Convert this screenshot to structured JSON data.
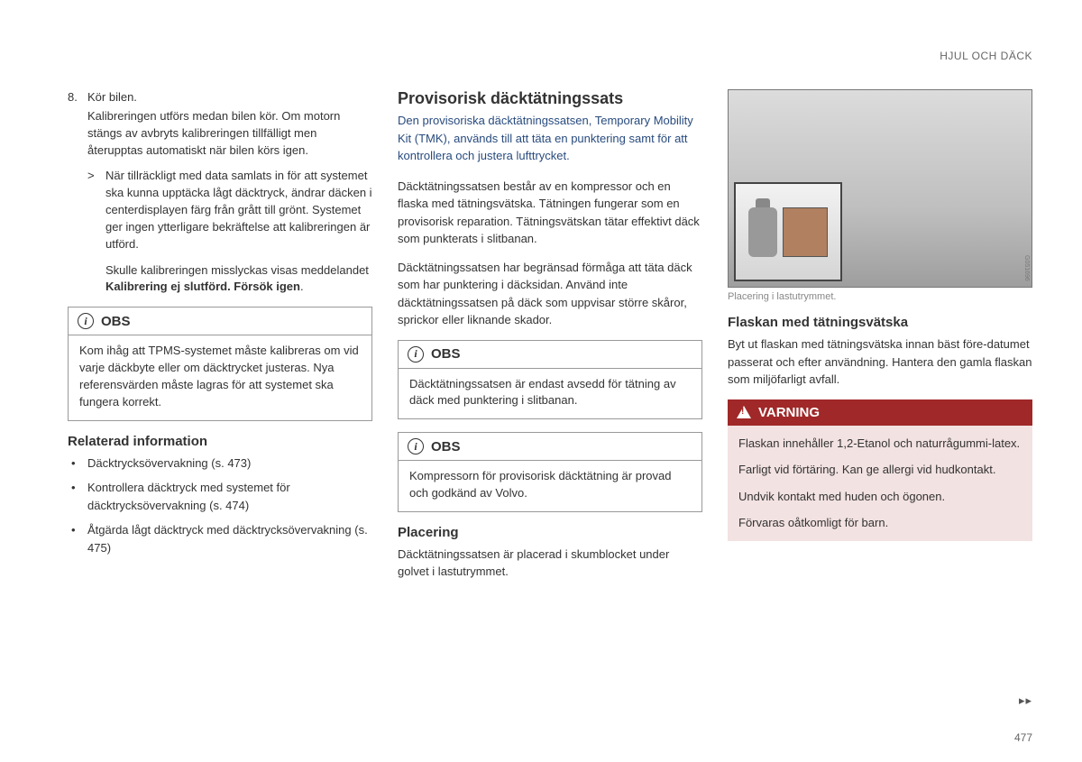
{
  "header": {
    "title": "HJUL OCH DÄCK"
  },
  "col1": {
    "step_num": "8.",
    "step_text": "Kör bilen.",
    "step_para": "Kalibreringen utförs medan bilen kör. Om motorn stängs av avbryts kalibreringen tillfälligt men återupptas automatiskt när bilen körs igen.",
    "arrow_symbol": ">",
    "arrow_p1": "När tillräckligt med data samlats in för att systemet ska kunna upptäcka lågt däcktryck, ändrar däcken i centerdisplayen färg från grått till grönt. Systemet ger ingen ytterligare bekräftelse att kalibreringen är utförd.",
    "arrow_p2_pre": "Skulle kalibreringen misslyckas visas meddelandet ",
    "arrow_p2_bold": "Kalibrering ej slutförd. Försök igen",
    "arrow_p2_post": ".",
    "obs": {
      "label": "OBS",
      "text": "Kom ihåg att TPMS-systemet måste kalibreras om vid varje däckbyte eller om däcktrycket justeras. Nya referensvärden måste lagras för att systemet ska fungera korrekt."
    },
    "related_heading": "Relaterad information",
    "related_items": [
      "Däcktrycksövervakning (s. 473)",
      "Kontrollera däcktryck med systemet för däcktrycksövervakning (s. 474)",
      "Åtgärda lågt däcktryck med däcktrycksövervakning (s. 475)"
    ]
  },
  "col2": {
    "title": "Provisorisk däcktätningssats",
    "intro": "Den provisoriska däcktätningssatsen, Temporary Mobility Kit (TMK), används till att täta en punktering samt för att kontrollera och justera lufttrycket.",
    "p1": "Däcktätningssatsen består av en kompressor och en flaska med tätningsvätska. Tätningen fungerar som en provisorisk reparation. Tätningsvätskan tätar effektivt däck som punkterats i slitbanan.",
    "p2": "Däcktätningssatsen har begränsad förmåga att täta däck som har punktering i däcksidan. Använd inte däcktätningssatsen på däck som uppvisar större skåror, sprickor eller liknande skador.",
    "obs1": {
      "label": "OBS",
      "text": "Däcktätningssatsen är endast avsedd för tätning av däck med punktering i slitbanan."
    },
    "obs2": {
      "label": "OBS",
      "text": "Kompressorn för provisorisk däcktätning är provad och godkänd av Volvo."
    },
    "placering_h": "Placering",
    "placering_p": "Däcktätningssatsen är placerad i skumblocket under golvet i lastutrymmet."
  },
  "col3": {
    "image_code": "G051696",
    "caption": "Placering i lastutrymmet.",
    "flask_h": "Flaskan med tätningsvätska",
    "flask_p": "Byt ut flaskan med tätningsvätska innan bäst före-datumet passerat och efter användning. Hantera den gamla flaskan som miljöfarligt avfall.",
    "warn": {
      "label": "VARNING",
      "p1": "Flaskan innehåller 1,2-Etanol och naturrågummi-latex.",
      "p2": "Farligt vid förtäring. Kan ge allergi vid hudkontakt.",
      "p3": "Undvik kontakt med huden och ögonen.",
      "p4": "Förvaras oåtkomligt för barn."
    }
  },
  "footer": {
    "continue": "▸▸",
    "page": "477"
  },
  "colors": {
    "intro": "#284b7e",
    "warn_header": "#a02828",
    "warn_body": "#f3e2e2",
    "text": "#333333"
  }
}
